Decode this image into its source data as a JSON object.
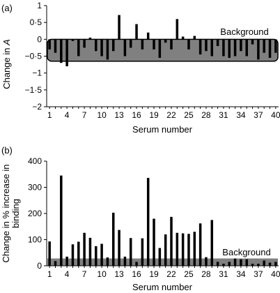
{
  "chart_data": [
    {
      "panel_label": "(a)",
      "type": "bar",
      "xlabel": "Serum number",
      "ylabel_prefix": "Change in ",
      "ylabel_var": "A",
      "ylim": [
        -2,
        1
      ],
      "yticks": [
        1,
        0.5,
        0,
        -0.5,
        -1,
        -1.5,
        -2
      ],
      "ytick_labels": [
        "1",
        "0·5",
        "0",
        "−0·5",
        "−1",
        "−1·5",
        "−2"
      ],
      "xticks": [
        1,
        4,
        7,
        10,
        13,
        16,
        19,
        22,
        25,
        28,
        31,
        34,
        37,
        40
      ],
      "xlim": [
        0.5,
        40.5
      ],
      "background_band": {
        "label": "Background",
        "ymin": -0.65,
        "ymax": 0,
        "color": "#808080"
      },
      "bar_color": "#000000",
      "categories": [
        1,
        2,
        3,
        4,
        5,
        6,
        7,
        8,
        9,
        10,
        11,
        12,
        13,
        14,
        15,
        16,
        17,
        18,
        19,
        20,
        21,
        22,
        23,
        24,
        25,
        26,
        27,
        28,
        29,
        30,
        31,
        32,
        33,
        34,
        35,
        36,
        37,
        38,
        39,
        40
      ],
      "values": [
        -0.3,
        -0.4,
        -0.7,
        -0.8,
        -0.05,
        -0.5,
        -0.25,
        0.05,
        -0.35,
        -0.5,
        -0.6,
        -0.35,
        0.72,
        -0.5,
        -0.25,
        0.45,
        -0.3,
        0.2,
        -0.3,
        -0.55,
        -0.1,
        -0.3,
        0.6,
        0.08,
        -0.3,
        0.1,
        -0.45,
        -0.35,
        -0.5,
        -0.2,
        -0.5,
        -0.55,
        -0.5,
        -0.35,
        -0.5,
        -0.15,
        -0.6,
        -0.4,
        -0.55,
        -0.4
      ],
      "grid": false
    },
    {
      "panel_label": "(b)",
      "type": "bar",
      "xlabel": "Serum number",
      "ylabel_lines": [
        "Change in % increase in",
        "binding"
      ],
      "ylim": [
        0,
        400
      ],
      "yticks": [
        0,
        100,
        200,
        300,
        400
      ],
      "ytick_labels": [
        "0",
        "100",
        "200",
        "300",
        "400"
      ],
      "xticks": [
        1,
        4,
        7,
        10,
        13,
        16,
        19,
        22,
        25,
        28,
        31,
        34,
        37,
        40
      ],
      "xlim": [
        0.5,
        40.5
      ],
      "background_band": {
        "label": "Background",
        "ymin": 0,
        "ymax": 28,
        "color": "#808080"
      },
      "bar_color": "#000000",
      "categories": [
        1,
        2,
        3,
        4,
        5,
        6,
        7,
        8,
        9,
        10,
        11,
        12,
        13,
        14,
        15,
        16,
        17,
        18,
        19,
        20,
        21,
        22,
        23,
        24,
        25,
        26,
        27,
        28,
        29,
        30,
        31,
        32,
        33,
        34,
        35,
        36,
        37,
        38,
        39,
        40
      ],
      "values": [
        93,
        18,
        345,
        35,
        82,
        92,
        126,
        107,
        75,
        84,
        32,
        203,
        137,
        35,
        106,
        15,
        105,
        336,
        180,
        68,
        120,
        187,
        126,
        124,
        122,
        130,
        162,
        33,
        175,
        15,
        8,
        15,
        28,
        25,
        25,
        8,
        8,
        20,
        12,
        15
      ],
      "grid": false
    }
  ],
  "tick_values_a": [
    "1",
    "4",
    "7",
    "10",
    "13",
    "16",
    "19",
    "22",
    "25",
    "28",
    "31",
    "34",
    "37",
    "40"
  ]
}
